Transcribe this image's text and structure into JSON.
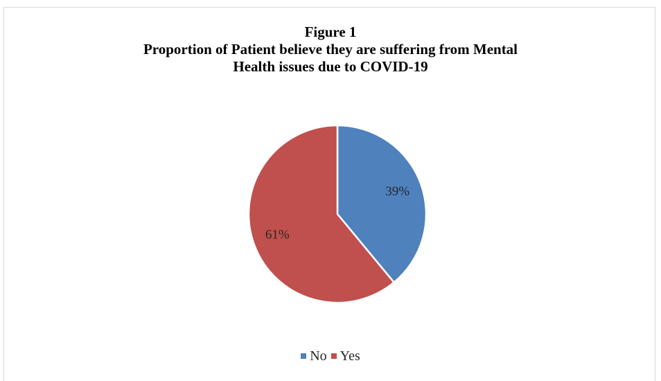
{
  "figure": {
    "label": "Figure 1",
    "title_line1": "Proportion of Patient believe they are suffering from Mental",
    "title_line2": "Health issues due to COVID-19"
  },
  "chart_data": {
    "type": "pie",
    "title": "Figure 1 Proportion of Patient believe they are suffering from Mental Health issues due to COVID-19",
    "categories": [
      "No",
      "Yes"
    ],
    "values": [
      39,
      61
    ],
    "data_labels": [
      "39%",
      "61%"
    ],
    "colors": [
      "#4f81bd",
      "#c0504d"
    ],
    "legend_position": "bottom",
    "start_angle": "top, clockwise"
  }
}
